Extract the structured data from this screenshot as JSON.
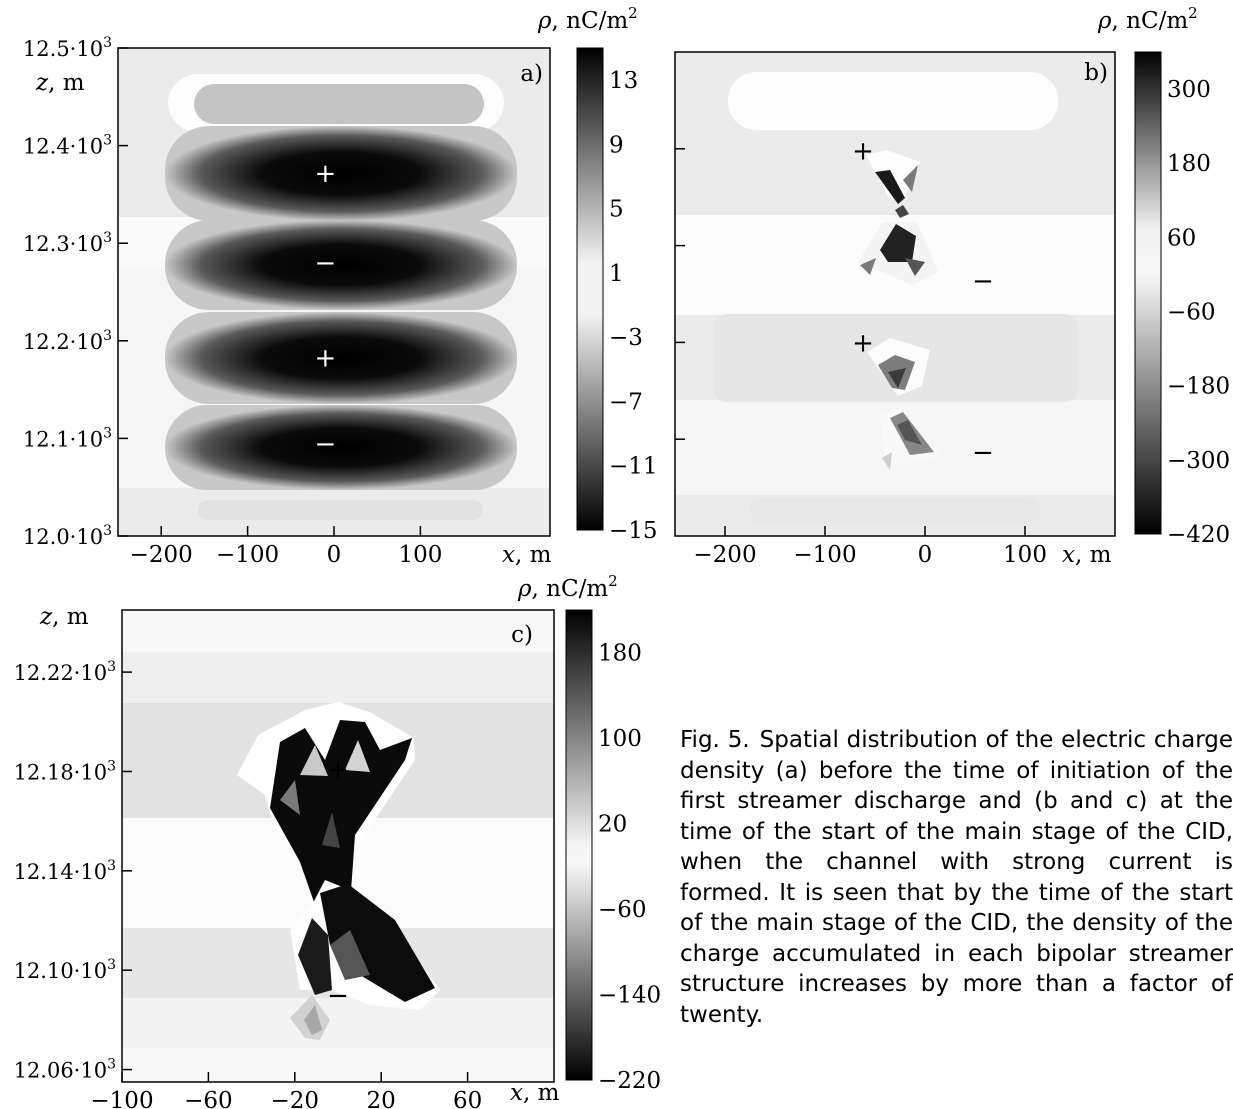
{
  "chart_data": [
    {
      "panel": "a)",
      "type": "heatmap",
      "xlabel": "x, m",
      "ylabel": "z, m",
      "xlim": [
        -250,
        250
      ],
      "ylim": [
        12000,
        12500
      ],
      "xticks": [
        -200,
        -100,
        0,
        100
      ],
      "xtick_labels": [
        "−200",
        "−100",
        "0",
        "100"
      ],
      "yticks": [
        12000,
        12100,
        12200,
        12300,
        12400,
        12500
      ],
      "ytick_labels": [
        [
          "12.0",
          "3"
        ],
        [
          "12.1",
          "3"
        ],
        [
          "12.2",
          "3"
        ],
        [
          "12.3",
          "3"
        ],
        [
          "12.4",
          "3"
        ],
        [
          "12.5",
          "3"
        ]
      ],
      "colorbar": {
        "label": [
          "ρ",
          ", nC/m",
          "2"
        ],
        "range": [
          -15,
          15
        ],
        "ticks": [
          13,
          9,
          5,
          1,
          -3,
          -7,
          -11,
          -15
        ],
        "tick_labels": [
          "13",
          "9",
          "5",
          "1",
          "−3",
          "−7",
          "−11",
          "−15"
        ]
      },
      "regions": [
        {
          "x": [
            -145,
            145
          ],
          "z": [
            12407,
            12455
          ],
          "rho": 4
        },
        {
          "x": [
            -175,
            175
          ],
          "z": [
            12325,
            12420
          ],
          "rho": 14
        },
        {
          "x": [
            -175,
            175
          ],
          "z": [
            12233,
            12325
          ],
          "rho": -14
        },
        {
          "x": [
            -175,
            175
          ],
          "z": [
            12137,
            12233
          ],
          "rho": 14
        },
        {
          "x": [
            -175,
            175
          ],
          "z": [
            12045,
            12137
          ],
          "rho": -14
        },
        {
          "x": [
            -145,
            145
          ],
          "z": [
            12015,
            12035
          ],
          "rho": -4
        }
      ],
      "signs": [
        {
          "x": -10,
          "z": 12372,
          "sign": "+"
        },
        {
          "x": -10,
          "z": 12280,
          "sign": "−"
        },
        {
          "x": -10,
          "z": 12183,
          "sign": "+"
        },
        {
          "x": -10,
          "z": 12095,
          "sign": "−"
        }
      ]
    },
    {
      "panel": "b)",
      "type": "heatmap",
      "xlabel": "x, m",
      "xlim": [
        -250,
        190
      ],
      "ylim": [
        12000,
        12500
      ],
      "xticks": [
        -200,
        -100,
        0,
        100
      ],
      "xtick_labels": [
        "−200",
        "−100",
        "0",
        "100"
      ],
      "yticks": [
        12100,
        12200,
        12300,
        12400
      ],
      "colorbar": {
        "label": [
          "ρ",
          ", nC/m",
          "2"
        ],
        "range": [
          -420,
          360
        ],
        "ticks": [
          300,
          180,
          60,
          -60,
          -180,
          -300,
          -420
        ],
        "tick_labels": [
          "300",
          "180",
          "60",
          "−60",
          "−180",
          "−300",
          "−420"
        ]
      },
      "regions": [
        {
          "x": [
            -25,
            25
          ],
          "z": [
            12320,
            12400
          ],
          "rho": 280
        },
        {
          "x": [
            -45,
            35
          ],
          "z": [
            12265,
            12320
          ],
          "rho": 320
        },
        {
          "x": [
            -30,
            35
          ],
          "z": [
            12160,
            12215
          ],
          "rho": 200
        },
        {
          "x": [
            -20,
            40
          ],
          "z": [
            12075,
            12135
          ],
          "rho": 160
        }
      ],
      "signs": [
        {
          "x": -62,
          "z": 12398,
          "sign": "+"
        },
        {
          "x": 58,
          "z": 12264,
          "sign": "−"
        },
        {
          "x": -62,
          "z": 12200,
          "sign": "+"
        },
        {
          "x": 58,
          "z": 12087,
          "sign": "−"
        }
      ]
    },
    {
      "panel": "c)",
      "type": "heatmap",
      "xlabel": "x, m",
      "ylabel": "z, m",
      "xlim": [
        -100,
        100
      ],
      "ylim": [
        12055,
        12245
      ],
      "xticks": [
        -100,
        -60,
        -20,
        20,
        60
      ],
      "xtick_labels": [
        "−100",
        "−60",
        "−20",
        "20",
        "60"
      ],
      "yticks": [
        12060,
        12100,
        12140,
        12180,
        12220
      ],
      "ytick_labels": [
        [
          "12.06",
          "3"
        ],
        [
          "12.10",
          "3"
        ],
        [
          "12.14",
          "3"
        ],
        [
          "12.18",
          "3"
        ],
        [
          "12.22",
          "3"
        ]
      ],
      "colorbar": {
        "label": [
          "ρ",
          ", nC/m",
          "2"
        ],
        "range": [
          -220,
          220
        ],
        "ticks": [
          180,
          100,
          20,
          -60,
          -140,
          -220
        ],
        "tick_labels": [
          "180",
          "100",
          "20",
          "−60",
          "−140",
          "−220"
        ]
      },
      "regions": [
        {
          "x": [
            -25,
            30
          ],
          "z": [
            12140,
            12190
          ],
          "rho": 200
        },
        {
          "x": [
            -20,
            40
          ],
          "z": [
            12090,
            12135
          ],
          "rho": 190
        }
      ],
      "signs": [
        {
          "x": 0,
          "z": 12181,
          "sign": "+"
        },
        {
          "x": 0,
          "z": 12090,
          "sign": "−"
        }
      ]
    }
  ],
  "caption": {
    "label": "Fig. 5.",
    "text": "Spatial distribution of the electric charge density (a) before the time of initiation of the first streamer discharge and (b and c) at the time of the start of the main stage of the CID, when the channel with strong current is formed. It is seen that by the time of the start of the main stage of the CID, the density of the charge accumulated in each bipolar streamer structure increases by more than a factor of twenty."
  }
}
